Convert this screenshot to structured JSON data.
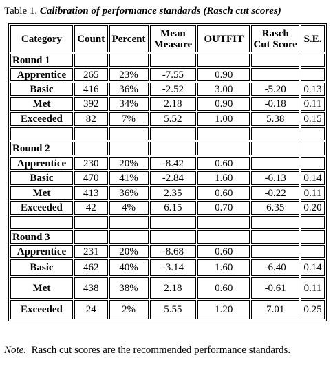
{
  "caption": {
    "label": "Table 1.",
    "title": "Calibration of performance standards (Rasch cut scores)"
  },
  "table": {
    "header": [
      "Category",
      "Count",
      "Percent",
      "Mean Measure",
      "OUTFIT",
      "Rasch Cut Score",
      "S.E."
    ],
    "sections": [
      {
        "title": "Round 1",
        "rows": [
          [
            "Apprentice",
            "265",
            "23%",
            "-7.55",
            "0.90"
          ],
          [
            "Basic",
            "416",
            "36%",
            "-2.52",
            "3.00",
            "-5.20",
            "0.13"
          ],
          [
            "Met",
            "392",
            "34%",
            "2.18",
            "0.90",
            "-0.18",
            "0.11"
          ],
          [
            "Exceeded",
            "82",
            "7%",
            "5.52",
            "1.00",
            "5.38",
            "0.15"
          ]
        ]
      },
      {
        "title": "Round 2",
        "rows": [
          [
            "Apprentice",
            "230",
            "20%",
            "-8.42",
            "0.60"
          ],
          [
            "Basic",
            "470",
            "41%",
            "-2.84",
            "1.60",
            "-6.13",
            "0.14"
          ],
          [
            "Met",
            "413",
            "36%",
            "2.35",
            "0.60",
            "-0.22",
            "0.11"
          ],
          [
            "Exceeded",
            "42",
            "4%",
            "6.15",
            "0.70",
            "6.35",
            "0.20"
          ]
        ]
      },
      {
        "title": "Round 3",
        "rows": [
          [
            "Apprentice",
            "231",
            "20%",
            "-8.68",
            "0.60"
          ],
          [
            "Basic",
            "462",
            "40%",
            "-3.14",
            "1.60",
            "-6.40",
            "0.14"
          ],
          [
            "Met",
            "438",
            "38%",
            "2.18",
            "0.60",
            "-0.61",
            "0.11"
          ],
          [
            "Exceeded",
            "24",
            "2%",
            "5.55",
            "1.20",
            "7.01",
            "0.25"
          ]
        ]
      }
    ]
  },
  "note": {
    "label": "Note.",
    "text": "Rasch cut scores are the recommended performance standards."
  }
}
